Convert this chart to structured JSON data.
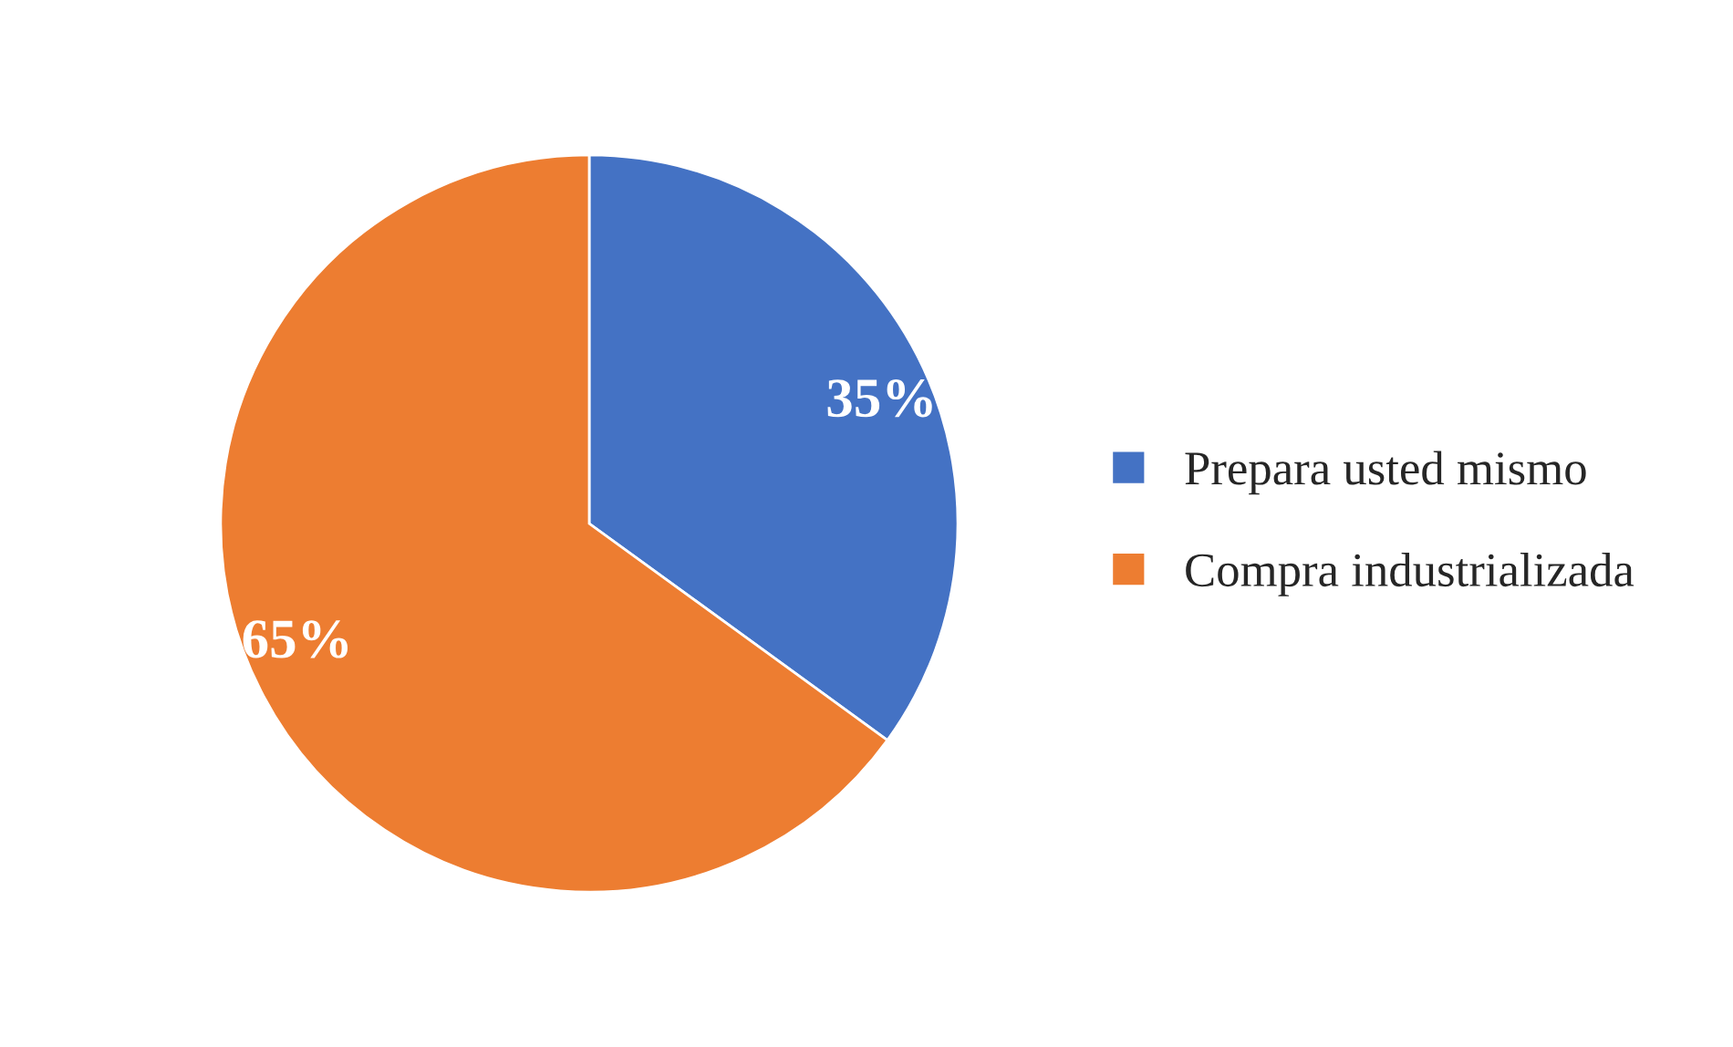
{
  "chart_data": {
    "type": "pie",
    "categories": [
      "Prepara usted mismo",
      "Compra industrializada"
    ],
    "values": [
      35,
      65
    ],
    "value_labels": [
      "35%",
      "65%"
    ],
    "colors": [
      "#4472c4",
      "#ed7d31"
    ],
    "legend": "right"
  }
}
